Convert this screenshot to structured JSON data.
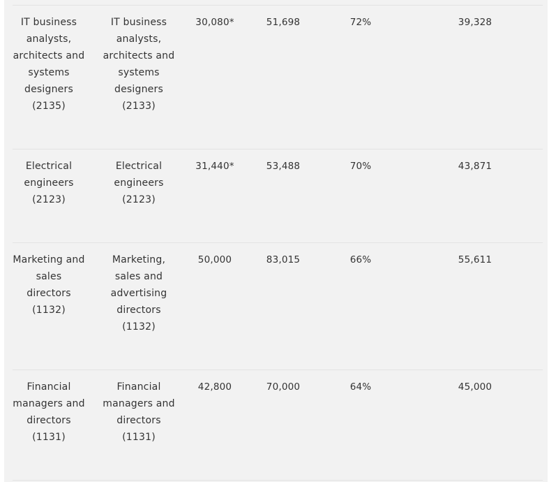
{
  "rows": [
    {
      "occupation_a": "IT business analysts, architects and systems designers (2135)",
      "occupation_b": "IT business analysts, architects and systems designers (2133)",
      "value_1": "30,080*",
      "value_2": "51,698",
      "percent": "72%",
      "value_3": "39,328"
    },
    {
      "occupation_a": "Electrical engineers (2123)",
      "occupation_b": "Electrical engineers (2123)",
      "value_1": "31,440*",
      "value_2": "53,488",
      "percent": "70%",
      "value_3": "43,871"
    },
    {
      "occupation_a": "Marketing and sales directors (1132)",
      "occupation_b": "Marketing, sales and advertising directors (1132)",
      "value_1": "50,000",
      "value_2": "83,015",
      "percent": "66%",
      "value_3": "55,611"
    },
    {
      "occupation_a": "Financial managers and directors (1131)",
      "occupation_b": "Financial managers and directors (1131)",
      "value_1": "42,800",
      "value_2": "70,000",
      "percent": "64%",
      "value_3": "45,000"
    }
  ]
}
